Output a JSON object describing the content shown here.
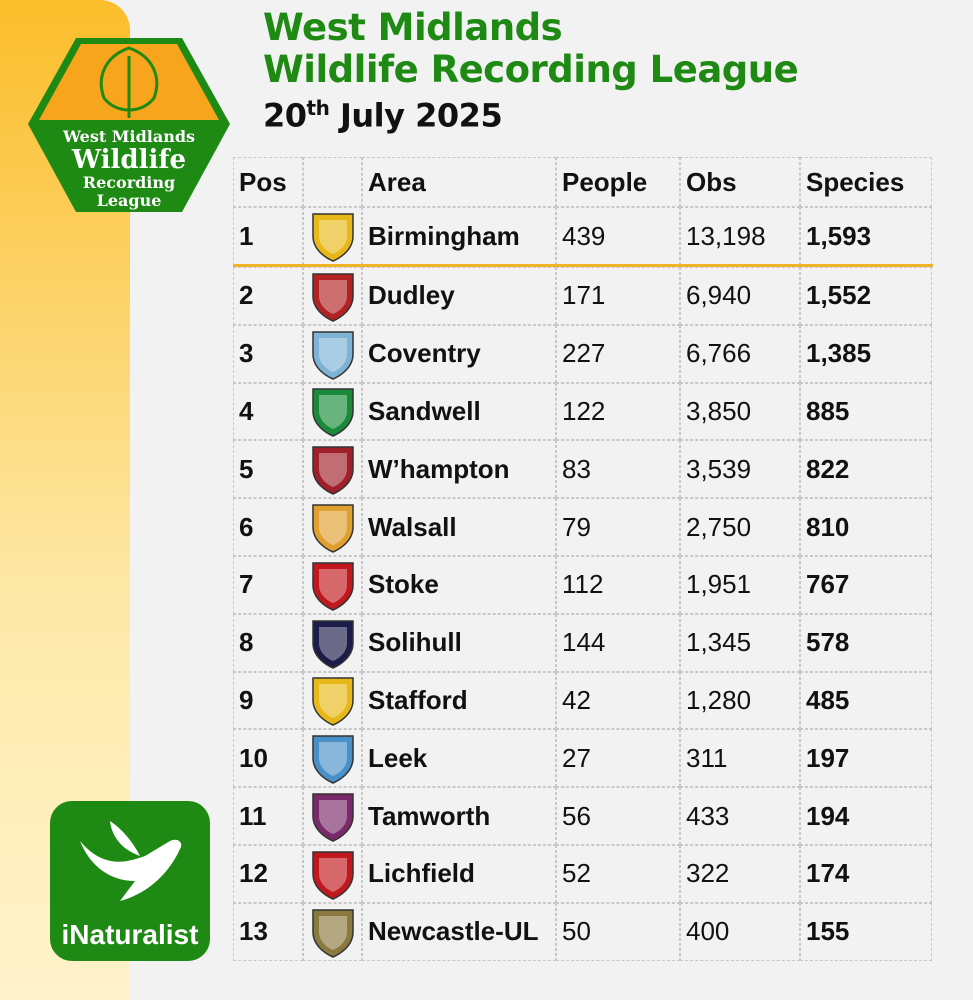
{
  "logo": {
    "lines": [
      "West Midlands",
      "Wildlife",
      "Recording",
      "League"
    ]
  },
  "title": {
    "line1": "West Midlands",
    "line2": "Wildlife Recording League",
    "day": "20",
    "suffix": "th",
    "month_year": "July 2025"
  },
  "brand": "iNaturalist",
  "table": {
    "header": [
      "Pos",
      "Area",
      "People",
      "Obs",
      "Species"
    ],
    "rows": [
      [
        "1",
        "Birmingham",
        "439",
        "13,198",
        "1,593"
      ],
      [
        "2",
        "Dudley",
        "171",
        "6,940",
        "1,552"
      ],
      [
        "3",
        "Coventry",
        "227",
        "6,766",
        "1,385"
      ],
      [
        "4",
        "Sandwell",
        "122",
        "3,850",
        "885"
      ],
      [
        "5",
        "W’hampton",
        "83",
        "3,539",
        "822"
      ],
      [
        "6",
        "Walsall",
        "79",
        "2,750",
        "810"
      ],
      [
        "7",
        "Stoke",
        "112",
        "1,951",
        "767"
      ],
      [
        "8",
        "Solihull",
        "144",
        "1,345",
        "578"
      ],
      [
        "9",
        "Stafford",
        "42",
        "1,280",
        "485"
      ],
      [
        "10",
        "Leek",
        "27",
        "311",
        "197"
      ],
      [
        "11",
        "Tamworth",
        "56",
        "433",
        "194"
      ],
      [
        "12",
        "Lichfield",
        "52",
        "322",
        "174"
      ],
      [
        "13",
        "Newcastle-UL",
        "50",
        "400",
        "155"
      ]
    ]
  }
}
